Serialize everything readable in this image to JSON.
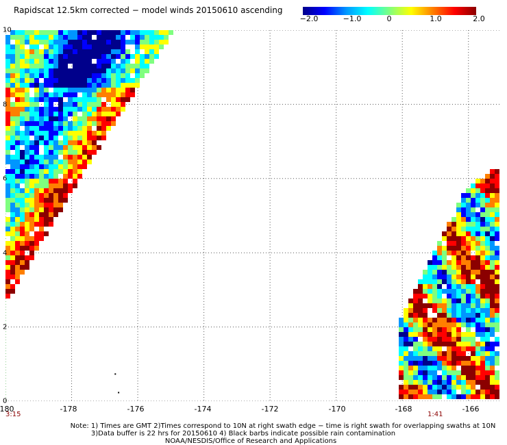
{
  "title": "Rapidscat 12.5km corrected − model winds 20150610 ascending",
  "colorbar": {
    "labels": [
      "−2.0",
      "−1.0",
      "0",
      "1.0",
      "2.0"
    ],
    "min": -2.0,
    "max": 2.0,
    "colors": [
      "#00008b",
      "#0000ff",
      "#0096ff",
      "#00ffff",
      "#7fff7f",
      "#ffff00",
      "#ff7f00",
      "#ff0000",
      "#8b0000"
    ]
  },
  "axes": {
    "x_ticks": [
      "-180",
      "-178",
      "-176",
      "-174",
      "-172",
      "-170",
      "-168",
      "-166"
    ],
    "y_ticks": [
      "0",
      "2",
      "4",
      "6",
      "8",
      "10"
    ],
    "x_range": [
      -180,
      -165
    ],
    "y_range": [
      0,
      10
    ],
    "grid": "dotted"
  },
  "times": [
    {
      "label": "3:15",
      "lon": -180
    },
    {
      "label": "1:41",
      "lon": -166.8
    }
  ],
  "notes": [
    "Note: 1) Times are GMT 2)Times correspond to 10N at right swath edge − time is right swath for overlapping swaths at 10N",
    "3)Data buffer is 22 hrs for 20150610 4) Black barbs indicate possible rain contamination",
    "NOAA/NESDIS/Office of Research and Applications"
  ],
  "chart_data": {
    "type": "heatmap",
    "title": "Rapidscat 12.5km corrected − model winds 20150610 ascending",
    "x_range": [
      -180,
      -165
    ],
    "y_range": [
      0,
      10
    ],
    "value_range": [
      -2.0,
      2.0
    ],
    "swaths": [
      {
        "name": "",
        "polygon_lonlat": [
          [
            -180,
            2.6
          ],
          [
            -180,
            10
          ],
          [
            -174.9,
            10
          ],
          [
            -177.7,
            6.1
          ]
        ]
      },
      {
        "name": "",
        "polygon_lonlat": [
          [
            -168.1,
            0
          ],
          [
            -168.1,
            2.1
          ],
          [
            -166.1,
            5.7
          ],
          [
            -165.2,
            6.3
          ],
          [
            -165,
            6.3
          ],
          [
            -165,
            0
          ]
        ]
      }
    ]
  }
}
